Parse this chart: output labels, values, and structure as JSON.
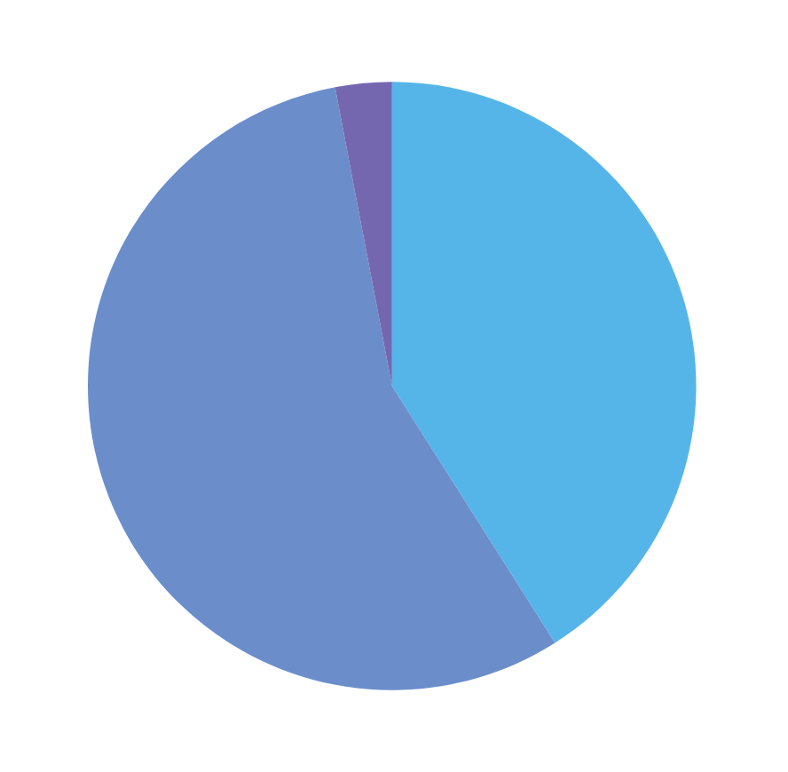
{
  "chart_data": {
    "type": "pie",
    "categories": [
      null,
      null,
      null
    ],
    "values": [
      41,
      56,
      3
    ],
    "colors": [
      "#56b5e8",
      "#6b8ecb",
      "#7467b0"
    ]
  }
}
